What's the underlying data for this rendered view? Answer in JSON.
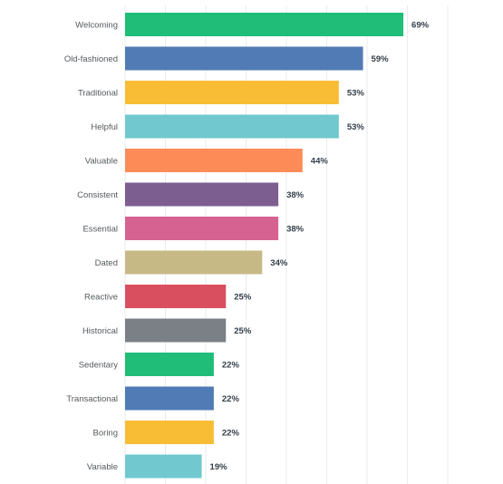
{
  "chart_data": {
    "type": "bar",
    "orientation": "horizontal",
    "categories": [
      "Welcoming",
      "Old-fashioned",
      "Traditional",
      "Helpful",
      "Valuable",
      "Consistent",
      "Essential",
      "Dated",
      "Reactive",
      "Historical",
      "Sedentary",
      "Transactional",
      "Boring",
      "Variable"
    ],
    "values": [
      69,
      59,
      53,
      53,
      44,
      38,
      38,
      34,
      25,
      25,
      22,
      22,
      22,
      19
    ],
    "value_labels": [
      "69%",
      "59%",
      "53%",
      "53%",
      "44%",
      "38%",
      "38%",
      "34%",
      "25%",
      "25%",
      "22%",
      "22%",
      "22%",
      "19%"
    ],
    "colors": [
      "#1fbd78",
      "#517bb5",
      "#f8bd35",
      "#71c8cf",
      "#fd8b58",
      "#7d5e91",
      "#d66292",
      "#c7b986",
      "#da4f60",
      "#7a8085",
      "#1fbd78",
      "#517bb5",
      "#f8bd35",
      "#71c8cf"
    ],
    "xlim": [
      0,
      80
    ],
    "grid": true,
    "legend": "none"
  }
}
